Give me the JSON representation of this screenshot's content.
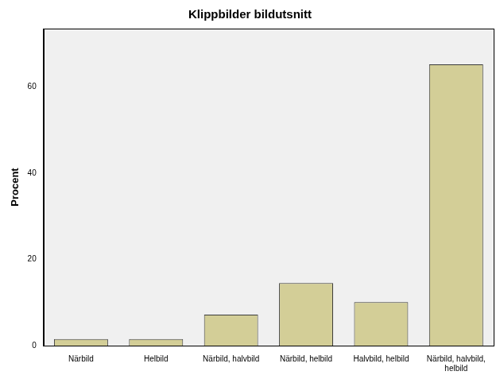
{
  "chart_data": {
    "type": "bar",
    "title": "Klippbilder bildutsnitt",
    "y_label": "Procent",
    "categories": [
      "Närbild",
      "Helbild",
      "Närbild, halvbild",
      "Närbild, helbild",
      "Halvbild, helbild",
      "Närbild, halvbild, helbild"
    ],
    "values": [
      1.5,
      1.5,
      7.2,
      14.5,
      10.1,
      65.2
    ],
    "color": "#d3ce97",
    "ylim": [
      0,
      73.5
    ],
    "yticks": [
      0,
      20,
      40,
      60
    ],
    "grid": false
  }
}
